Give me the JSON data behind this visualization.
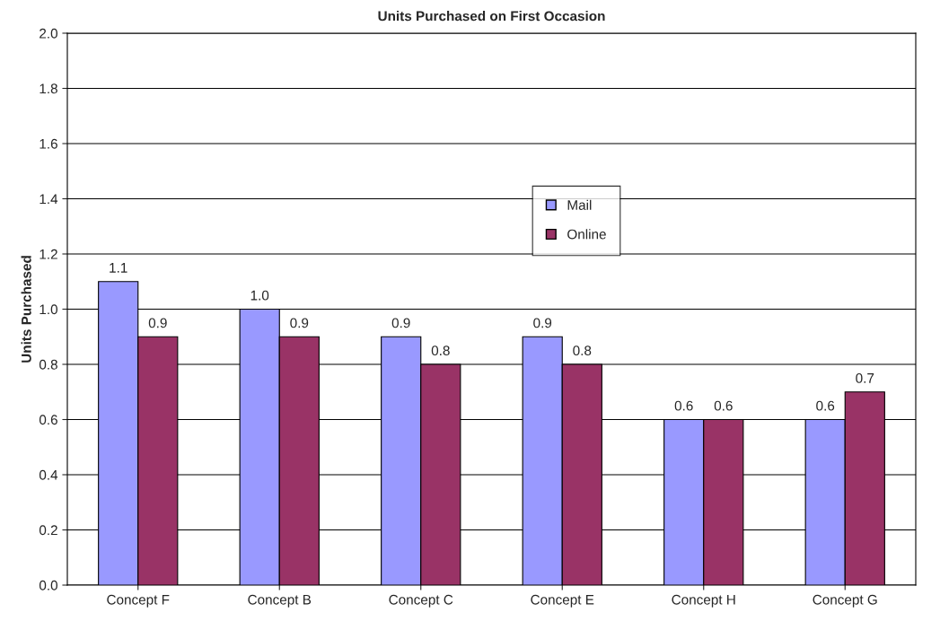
{
  "chart_data": {
    "type": "bar",
    "title": "Units Purchased on First Occasion",
    "ylabel": "Units Purchased",
    "categories": [
      "Concept F",
      "Concept B",
      "Concept C",
      "Concept E",
      "Concept H",
      "Concept G"
    ],
    "series": [
      {
        "name": "Mail",
        "color": "#9999ff",
        "values": [
          1.1,
          1.0,
          0.9,
          0.9,
          0.6,
          0.6
        ],
        "value_labels": [
          "1.1",
          "1.0",
          "0.9",
          "0.9",
          "0.6",
          "0.6"
        ]
      },
      {
        "name": "Online",
        "color": "#993366",
        "values": [
          0.9,
          0.9,
          0.8,
          0.8,
          0.6,
          0.7
        ],
        "value_labels": [
          "0.9",
          "0.9",
          "0.8",
          "0.8",
          "0.6",
          "0.7"
        ]
      }
    ],
    "ylim": [
      0,
      2.0
    ],
    "yticks": [
      {
        "value": 0,
        "label": "0.0"
      },
      {
        "value": 0.2,
        "label": "0.2"
      },
      {
        "value": 0.4,
        "label": "0.4"
      },
      {
        "value": 0.6,
        "label": "0.6"
      },
      {
        "value": 0.8,
        "label": "0.8"
      },
      {
        "value": 1.0,
        "label": "1.0"
      },
      {
        "value": 1.2,
        "label": "1.2"
      },
      {
        "value": 1.4,
        "label": "1.4"
      },
      {
        "value": 1.6,
        "label": "1.6"
      },
      {
        "value": 1.8,
        "label": "1.8"
      },
      {
        "value": 2.0,
        "label": "2.0"
      }
    ],
    "grid": "y",
    "legend": "center"
  }
}
